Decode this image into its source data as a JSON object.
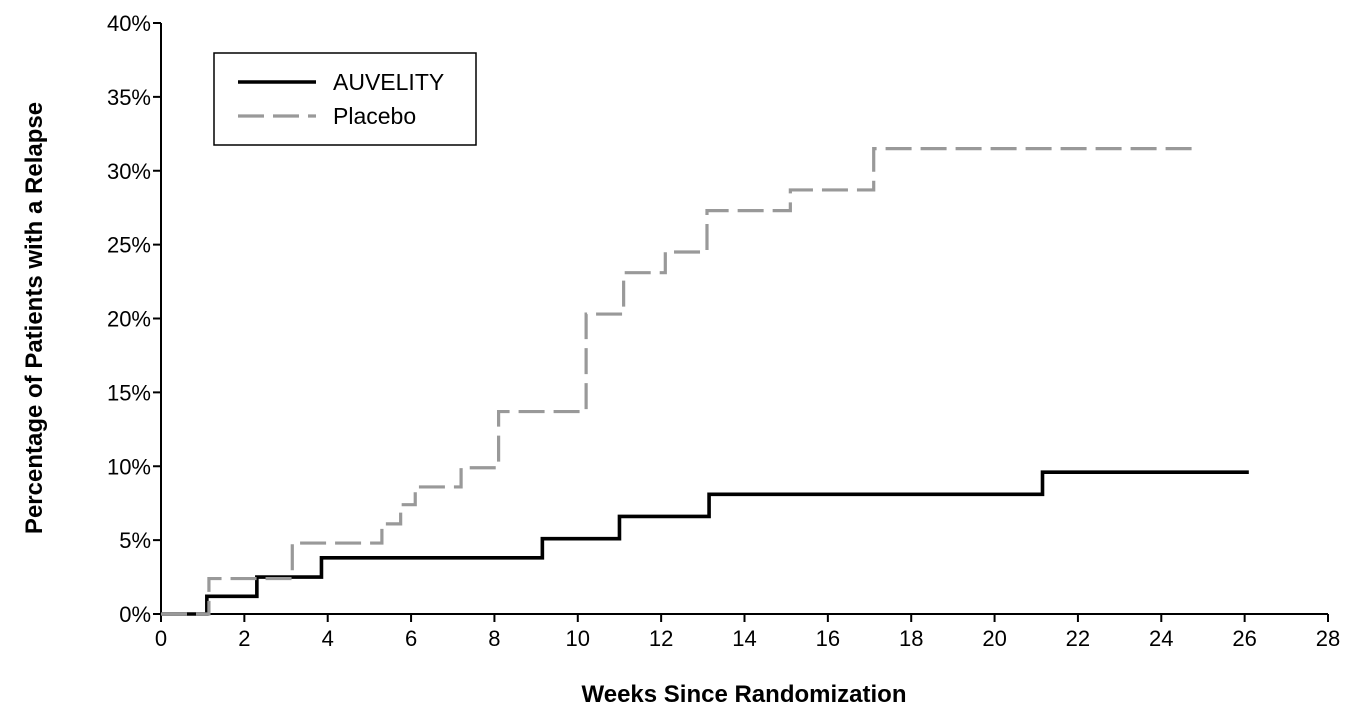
{
  "chart_data": {
    "type": "line",
    "step": true,
    "xlabel": "Weeks Since Randomization",
    "ylabel": "Percentage of Patients with a Relapse",
    "xlim": [
      0,
      28
    ],
    "ylim": [
      0,
      40
    ],
    "xticks": [
      0,
      2,
      4,
      6,
      8,
      10,
      12,
      14,
      16,
      18,
      20,
      22,
      24,
      26,
      28
    ],
    "yticks": [
      0,
      5,
      10,
      15,
      20,
      25,
      30,
      35,
      40
    ],
    "ytick_suffix": "%",
    "grid": false,
    "legend": "top-left",
    "series": [
      {
        "name": "AUVELITY",
        "color": "#000000",
        "dash": "solid",
        "x": [
          0,
          1.1,
          2.3,
          3.85,
          9.15,
          11.0,
          13.15,
          21.15,
          26.1
        ],
        "y": [
          0,
          1.2,
          2.5,
          3.8,
          5.1,
          6.6,
          8.1,
          9.6,
          9.6
        ]
      },
      {
        "name": "Placebo",
        "color": "#999999",
        "dash": "dashed",
        "x": [
          0,
          1.15,
          3.15,
          5.3,
          5.75,
          6.1,
          7.2,
          8.1,
          10.2,
          11.1,
          12.1,
          13.1,
          15.1,
          17.1,
          24.9
        ],
        "y": [
          0,
          2.4,
          4.8,
          6.1,
          7.4,
          8.6,
          9.9,
          13.7,
          20.3,
          23.1,
          24.5,
          27.3,
          28.7,
          31.5,
          31.5
        ]
      }
    ]
  }
}
